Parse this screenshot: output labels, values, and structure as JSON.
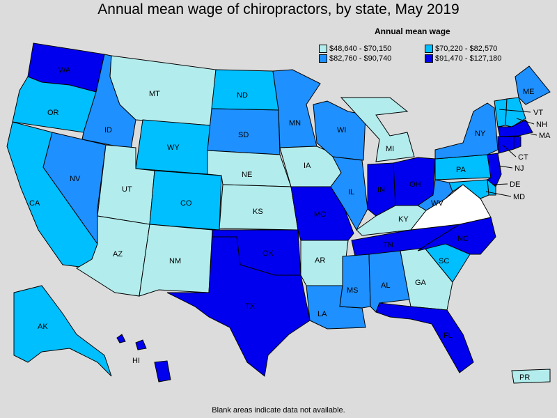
{
  "title": "Annual mean wage of chiropractors, by state, May 2019",
  "legend": {
    "title": "Annual mean wage",
    "bins": [
      {
        "label": "$48,640 - $70,150",
        "color": "#b3ecec"
      },
      {
        "label": "$70,220 - $82,570",
        "color": "#00bfff"
      },
      {
        "label": "$82,760 - $90,740",
        "color": "#1e90ff"
      },
      {
        "label": "$91,470 - $127,180",
        "color": "#0000ee"
      }
    ]
  },
  "footnote": "Blank areas indicate data not available.",
  "no_data_color": "#ffffff",
  "states": {
    "WA": 3,
    "OR": 1,
    "CA": 1,
    "ID": 2,
    "NV": 2,
    "MT": 0,
    "WY": 1,
    "UT": 0,
    "AZ": 0,
    "CO": 1,
    "NM": 0,
    "ND": 1,
    "SD": 2,
    "NE": 0,
    "KS": 0,
    "OK": 3,
    "TX": 3,
    "MN": 2,
    "IA": 0,
    "MO": 3,
    "AR": 0,
    "LA": 2,
    "WI": 2,
    "IL": 2,
    "MI": 0,
    "IN": 3,
    "OH": 3,
    "KY": 0,
    "TN": 3,
    "MS": 2,
    "AL": 2,
    "GA": 0,
    "FL": 3,
    "SC": 1,
    "NC": 3,
    "VA": -1,
    "WV": 2,
    "PA": 1,
    "NY": 2,
    "ME": 2,
    "VT": 1,
    "NH": 1,
    "MA": 3,
    "CT": 3,
    "RI": 3,
    "NJ": 3,
    "DE": 1,
    "MD": 1,
    "AK": 1,
    "HI": 3,
    "PR": 0
  }
}
